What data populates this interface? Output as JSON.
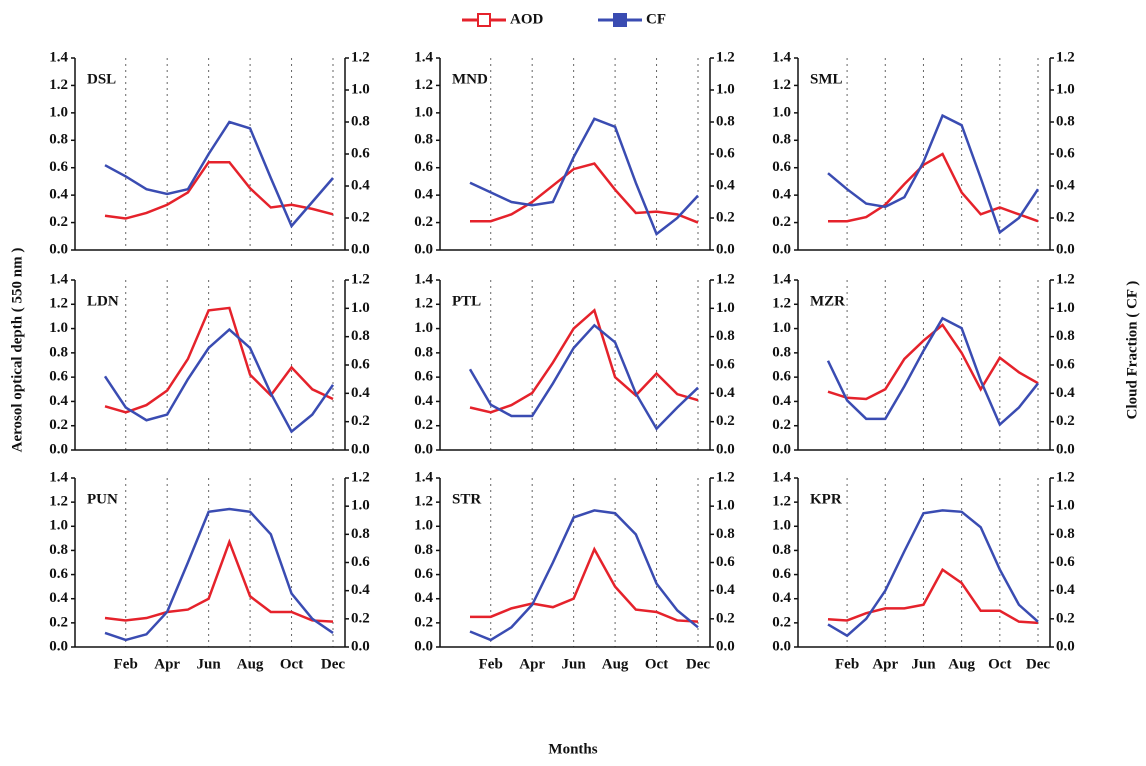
{
  "y_label": "Aerosol optical depth ( 550 nm )",
  "y2_label": "Cloud Fraction ( CF )",
  "x_label": "Months",
  "chart_data": [
    {
      "type": "line",
      "title": "DSL",
      "ylim": [
        0,
        1.4
      ],
      "yticks": [
        {
          "value": 0,
          "label": "0.0"
        },
        0.2,
        0.4,
        0.6,
        0.8,
        {
          "value": 1,
          "label": "1.0"
        },
        1.2,
        1.4
      ],
      "y2lim": [
        0,
        1.2
      ],
      "y2ticks": [
        {
          "value": 0,
          "label": "0.0"
        },
        0.2,
        0.4,
        0.6,
        0.8,
        {
          "value": 1,
          "label": "1.0"
        },
        1.2
      ],
      "series": [
        {
          "name": "AOD",
          "color": "#e5222b",
          "values": [
            0.25,
            0.23,
            0.27,
            0.33,
            0.42,
            0.64,
            0.64,
            0.45,
            0.31,
            0.33,
            0.3,
            0.26
          ]
        },
        {
          "name": "CF",
          "color": "#3a4cb2",
          "axis": "y2",
          "values": [
            0.53,
            0.46,
            0.38,
            0.35,
            0.38,
            0.6,
            0.8,
            0.76,
            0.45,
            0.15,
            0.3,
            0.45
          ]
        }
      ]
    },
    {
      "type": "line",
      "title": "MND",
      "ylim": [
        0,
        1.4
      ],
      "yticks": [
        {
          "value": 0,
          "label": "0.0"
        },
        0.2,
        0.4,
        0.6,
        0.8,
        {
          "value": 1,
          "label": "1.0"
        },
        1.2,
        1.4
      ],
      "y2lim": [
        0,
        1.2
      ],
      "y2ticks": [
        {
          "value": 0,
          "label": "0.0"
        },
        0.2,
        0.4,
        0.6,
        0.8,
        {
          "value": 1,
          "label": "1.0"
        },
        1.2
      ],
      "series": [
        {
          "color": "#e5222b",
          "values": [
            0.21,
            0.21,
            0.26,
            0.35,
            0.47,
            0.59,
            0.63,
            0.44,
            0.27,
            0.28,
            0.26,
            0.2
          ]
        },
        {
          "color": "#3a4cb2",
          "axis": "y2",
          "values": [
            0.42,
            0.36,
            0.3,
            0.28,
            0.3,
            0.58,
            0.82,
            0.77,
            0.42,
            0.1,
            0.2,
            0.34
          ]
        }
      ]
    },
    {
      "type": "line",
      "title": "SML",
      "ylim": [
        0,
        1.4
      ],
      "yticks": [
        {
          "value": 0,
          "label": "0.0"
        },
        0.2,
        0.4,
        0.6,
        0.8,
        {
          "value": 1,
          "label": "1.0"
        },
        1.2,
        1.4
      ],
      "y2lim": [
        0,
        1.2
      ],
      "y2ticks": [
        {
          "value": 0,
          "label": "0.0"
        },
        0.2,
        0.4,
        0.6,
        0.8,
        {
          "value": 1,
          "label": "1.0"
        },
        1.2
      ],
      "series": [
        {
          "color": "#e5222b",
          "values": [
            0.21,
            0.21,
            0.24,
            0.33,
            0.48,
            0.62,
            0.7,
            0.42,
            0.26,
            0.31,
            0.26,
            0.21
          ]
        },
        {
          "color": "#3a4cb2",
          "axis": "y2",
          "values": [
            0.48,
            0.38,
            0.29,
            0.27,
            0.33,
            0.55,
            0.84,
            0.78,
            0.45,
            0.11,
            0.2,
            0.38
          ]
        }
      ]
    },
    {
      "type": "line",
      "title": "LDN",
      "ylim": [
        0,
        1.4
      ],
      "yticks": [
        {
          "value": 0,
          "label": "0.0"
        },
        0.2,
        0.4,
        0.6,
        0.8,
        {
          "value": 1,
          "label": "1.0"
        },
        1.2,
        1.4
      ],
      "y2lim": [
        0,
        1.2
      ],
      "y2ticks": [
        {
          "value": 0,
          "label": "0.0"
        },
        0.2,
        0.4,
        0.6,
        0.8,
        {
          "value": 1,
          "label": "1.0"
        },
        1.2
      ],
      "series": [
        {
          "color": "#e5222b",
          "values": [
            0.36,
            0.31,
            0.37,
            0.49,
            0.75,
            1.15,
            1.17,
            0.62,
            0.45,
            0.68,
            0.5,
            0.42
          ]
        },
        {
          "color": "#3a4cb2",
          "axis": "y2",
          "values": [
            0.52,
            0.3,
            0.21,
            0.25,
            0.5,
            0.72,
            0.85,
            0.72,
            0.4,
            0.13,
            0.25,
            0.46
          ]
        }
      ]
    },
    {
      "type": "line",
      "title": "PTL",
      "ylim": [
        0,
        1.4
      ],
      "yticks": [
        {
          "value": 0,
          "label": "0.0"
        },
        0.2,
        0.4,
        0.6,
        0.8,
        {
          "value": 1,
          "label": "1.0"
        },
        1.2,
        1.4
      ],
      "y2lim": [
        0,
        1.2
      ],
      "y2ticks": [
        {
          "value": 0,
          "label": "0.0"
        },
        0.2,
        0.4,
        0.6,
        0.8,
        {
          "value": 1,
          "label": "1.0"
        },
        1.2
      ],
      "series": [
        {
          "color": "#e5222b",
          "values": [
            0.35,
            0.31,
            0.37,
            0.47,
            0.72,
            1.0,
            1.15,
            0.6,
            0.45,
            0.63,
            0.46,
            0.41
          ]
        },
        {
          "color": "#3a4cb2",
          "axis": "y2",
          "values": [
            0.57,
            0.32,
            0.24,
            0.24,
            0.47,
            0.72,
            0.88,
            0.76,
            0.4,
            0.15,
            0.3,
            0.44
          ]
        }
      ]
    },
    {
      "type": "line",
      "title": "MZR",
      "ylim": [
        0,
        1.4
      ],
      "yticks": [
        {
          "value": 0,
          "label": "0.0"
        },
        0.2,
        0.4,
        0.6,
        0.8,
        {
          "value": 1,
          "label": "1.0"
        },
        1.2,
        1.4
      ],
      "y2lim": [
        0,
        1.2
      ],
      "y2ticks": [
        {
          "value": 0,
          "label": "0.0"
        },
        0.2,
        0.4,
        0.6,
        0.8,
        {
          "value": 1,
          "label": "1.0"
        },
        1.2
      ],
      "series": [
        {
          "color": "#e5222b",
          "values": [
            0.48,
            0.43,
            0.42,
            0.5,
            0.75,
            0.9,
            1.03,
            0.8,
            0.5,
            0.76,
            0.64,
            0.55
          ]
        },
        {
          "color": "#3a4cb2",
          "axis": "y2",
          "values": [
            0.63,
            0.35,
            0.22,
            0.22,
            0.45,
            0.7,
            0.93,
            0.86,
            0.49,
            0.18,
            0.3,
            0.47
          ]
        }
      ]
    },
    {
      "type": "line",
      "title": "PUN",
      "categories": [
        null,
        "Feb",
        null,
        "Apr",
        null,
        "Jun",
        null,
        "Aug",
        null,
        "Oct",
        null,
        "Dec"
      ],
      "ylim": [
        0,
        1.4
      ],
      "yticks": [
        {
          "value": 0,
          "label": "0.0"
        },
        0.2,
        0.4,
        0.6,
        0.8,
        {
          "value": 1,
          "label": "1.0"
        },
        1.2,
        1.4
      ],
      "y2lim": [
        0,
        1.2
      ],
      "y2ticks": [
        {
          "value": 0,
          "label": "0.0"
        },
        0.2,
        0.4,
        0.6,
        0.8,
        {
          "value": 1,
          "label": "1.0"
        },
        1.2
      ],
      "series": [
        {
          "color": "#e5222b",
          "values": [
            0.24,
            0.22,
            0.24,
            0.29,
            0.31,
            0.4,
            0.87,
            0.42,
            0.29,
            0.29,
            0.22,
            0.21
          ]
        },
        {
          "color": "#3a4cb2",
          "axis": "y2",
          "values": [
            0.1,
            0.05,
            0.09,
            0.25,
            0.6,
            0.96,
            0.98,
            0.96,
            0.8,
            0.38,
            0.2,
            0.1
          ]
        }
      ]
    },
    {
      "type": "line",
      "title": "STR",
      "categories": [
        null,
        "Feb",
        null,
        "Apr",
        null,
        "Jun",
        null,
        "Aug",
        null,
        "Oct",
        null,
        "Dec"
      ],
      "ylim": [
        0,
        1.4
      ],
      "yticks": [
        {
          "value": 0,
          "label": "0.0"
        },
        0.2,
        0.4,
        0.6,
        0.8,
        {
          "value": 1,
          "label": "1.0"
        },
        1.2,
        1.4
      ],
      "y2lim": [
        0,
        1.2
      ],
      "y2ticks": [
        {
          "value": 0,
          "label": "0.0"
        },
        0.2,
        0.4,
        0.6,
        0.8,
        {
          "value": 1,
          "label": "1.0"
        },
        1.2
      ],
      "series": [
        {
          "color": "#e5222b",
          "values": [
            0.25,
            0.25,
            0.32,
            0.36,
            0.33,
            0.4,
            0.81,
            0.5,
            0.31,
            0.29,
            0.22,
            0.21
          ]
        },
        {
          "color": "#3a4cb2",
          "axis": "y2",
          "values": [
            0.11,
            0.05,
            0.14,
            0.3,
            0.6,
            0.92,
            0.97,
            0.95,
            0.8,
            0.45,
            0.26,
            0.14
          ]
        }
      ]
    },
    {
      "type": "line",
      "title": "KPR",
      "categories": [
        null,
        "Feb",
        null,
        "Apr",
        null,
        "Jun",
        null,
        "Aug",
        null,
        "Oct",
        null,
        "Dec"
      ],
      "ylim": [
        0,
        1.4
      ],
      "yticks": [
        {
          "value": 0,
          "label": "0.0"
        },
        0.2,
        0.4,
        0.6,
        0.8,
        {
          "value": 1,
          "label": "1.0"
        },
        1.2,
        1.4
      ],
      "y2lim": [
        0,
        1.2
      ],
      "y2ticks": [
        {
          "value": 0,
          "label": "0.0"
        },
        0.2,
        0.4,
        0.6,
        0.8,
        {
          "value": 1,
          "label": "1.0"
        },
        1.2
      ],
      "series": [
        {
          "color": "#e5222b",
          "values": [
            0.23,
            0.22,
            0.28,
            0.32,
            0.32,
            0.35,
            0.64,
            0.53,
            0.3,
            0.3,
            0.21,
            0.2
          ]
        },
        {
          "color": "#3a4cb2",
          "axis": "y2",
          "values": [
            0.16,
            0.08,
            0.2,
            0.4,
            0.68,
            0.95,
            0.97,
            0.96,
            0.85,
            0.55,
            0.3,
            0.18
          ]
        }
      ]
    }
  ]
}
